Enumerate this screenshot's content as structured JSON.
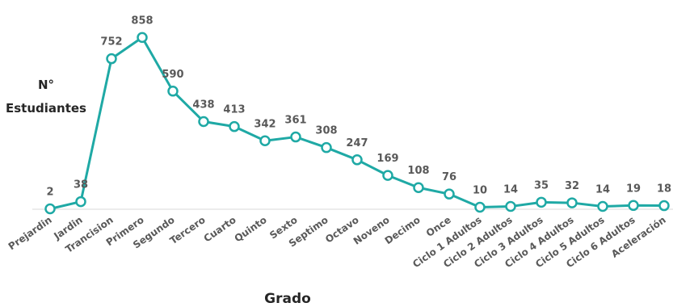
{
  "chart_data": {
    "type": "line",
    "title": "",
    "xlabel": "Grado",
    "ylabel_lines": [
      "N°",
      "Estudiantes"
    ],
    "categories": [
      "Prejardin",
      "Jardin",
      "Trancision",
      "Primero",
      "Segundo",
      "Tercero",
      "Cuarto",
      "Quinto",
      "Sexto",
      "Septimo",
      "Octavo",
      "Noveno",
      "Decimo",
      "Once",
      "Ciclo 1 Adultos",
      "Ciclo 2 Adultos",
      "Ciclo 3 Adultos",
      "Ciclo 4 Adultos",
      "Ciclo 5 Adultos",
      "Ciclo 6 Adultos",
      "Aceleración"
    ],
    "series": [
      {
        "values": [
          2,
          38,
          752,
          858,
          590,
          438,
          413,
          342,
          361,
          308,
          247,
          169,
          108,
          76,
          10,
          14,
          35,
          32,
          14,
          19,
          18
        ]
      }
    ],
    "ylim": [
      0,
      900
    ],
    "grid": false,
    "legend": "none",
    "data_labels": true,
    "line_color": "#1FA9A5",
    "marker_fill": "#ffffff",
    "axis_color": "#d9d9d9"
  }
}
